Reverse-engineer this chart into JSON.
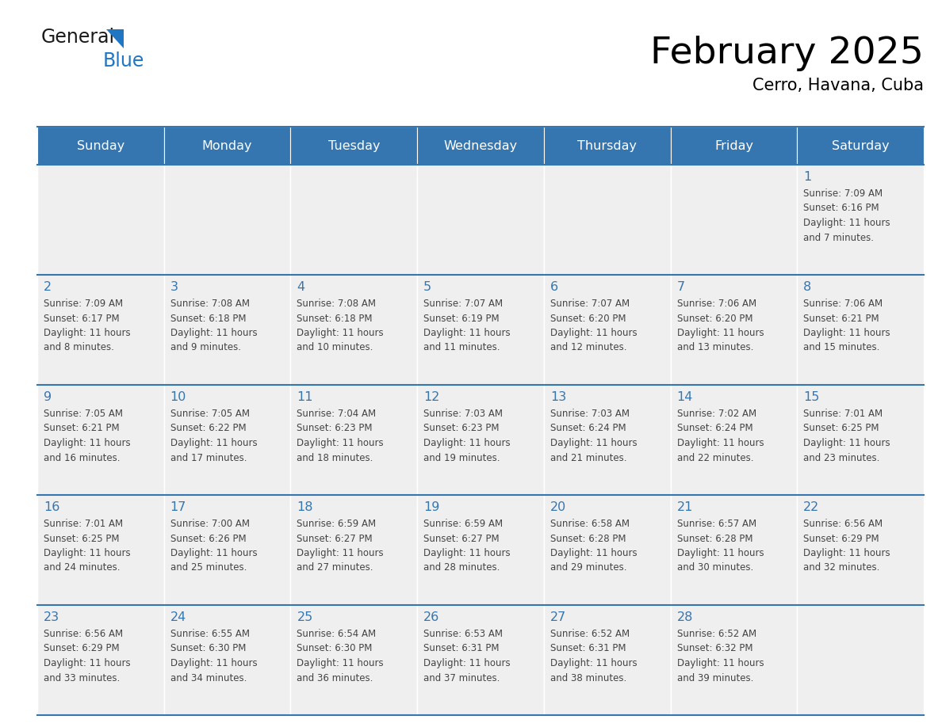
{
  "title": "February 2025",
  "subtitle": "Cerro, Havana, Cuba",
  "header_color": "#3676B0",
  "header_text_color": "#FFFFFF",
  "cell_bg_color": "#EFEFEF",
  "text_color": "#444444",
  "day_number_color": "#3676B0",
  "border_color": "#3676B0",
  "days_of_week": [
    "Sunday",
    "Monday",
    "Tuesday",
    "Wednesday",
    "Thursday",
    "Friday",
    "Saturday"
  ],
  "weeks": [
    [
      {
        "day": 0,
        "info": ""
      },
      {
        "day": 0,
        "info": ""
      },
      {
        "day": 0,
        "info": ""
      },
      {
        "day": 0,
        "info": ""
      },
      {
        "day": 0,
        "info": ""
      },
      {
        "day": 0,
        "info": ""
      },
      {
        "day": 1,
        "info": "Sunrise: 7:09 AM\nSunset: 6:16 PM\nDaylight: 11 hours\nand 7 minutes."
      }
    ],
    [
      {
        "day": 2,
        "info": "Sunrise: 7:09 AM\nSunset: 6:17 PM\nDaylight: 11 hours\nand 8 minutes."
      },
      {
        "day": 3,
        "info": "Sunrise: 7:08 AM\nSunset: 6:18 PM\nDaylight: 11 hours\nand 9 minutes."
      },
      {
        "day": 4,
        "info": "Sunrise: 7:08 AM\nSunset: 6:18 PM\nDaylight: 11 hours\nand 10 minutes."
      },
      {
        "day": 5,
        "info": "Sunrise: 7:07 AM\nSunset: 6:19 PM\nDaylight: 11 hours\nand 11 minutes."
      },
      {
        "day": 6,
        "info": "Sunrise: 7:07 AM\nSunset: 6:20 PM\nDaylight: 11 hours\nand 12 minutes."
      },
      {
        "day": 7,
        "info": "Sunrise: 7:06 AM\nSunset: 6:20 PM\nDaylight: 11 hours\nand 13 minutes."
      },
      {
        "day": 8,
        "info": "Sunrise: 7:06 AM\nSunset: 6:21 PM\nDaylight: 11 hours\nand 15 minutes."
      }
    ],
    [
      {
        "day": 9,
        "info": "Sunrise: 7:05 AM\nSunset: 6:21 PM\nDaylight: 11 hours\nand 16 minutes."
      },
      {
        "day": 10,
        "info": "Sunrise: 7:05 AM\nSunset: 6:22 PM\nDaylight: 11 hours\nand 17 minutes."
      },
      {
        "day": 11,
        "info": "Sunrise: 7:04 AM\nSunset: 6:23 PM\nDaylight: 11 hours\nand 18 minutes."
      },
      {
        "day": 12,
        "info": "Sunrise: 7:03 AM\nSunset: 6:23 PM\nDaylight: 11 hours\nand 19 minutes."
      },
      {
        "day": 13,
        "info": "Sunrise: 7:03 AM\nSunset: 6:24 PM\nDaylight: 11 hours\nand 21 minutes."
      },
      {
        "day": 14,
        "info": "Sunrise: 7:02 AM\nSunset: 6:24 PM\nDaylight: 11 hours\nand 22 minutes."
      },
      {
        "day": 15,
        "info": "Sunrise: 7:01 AM\nSunset: 6:25 PM\nDaylight: 11 hours\nand 23 minutes."
      }
    ],
    [
      {
        "day": 16,
        "info": "Sunrise: 7:01 AM\nSunset: 6:25 PM\nDaylight: 11 hours\nand 24 minutes."
      },
      {
        "day": 17,
        "info": "Sunrise: 7:00 AM\nSunset: 6:26 PM\nDaylight: 11 hours\nand 25 minutes."
      },
      {
        "day": 18,
        "info": "Sunrise: 6:59 AM\nSunset: 6:27 PM\nDaylight: 11 hours\nand 27 minutes."
      },
      {
        "day": 19,
        "info": "Sunrise: 6:59 AM\nSunset: 6:27 PM\nDaylight: 11 hours\nand 28 minutes."
      },
      {
        "day": 20,
        "info": "Sunrise: 6:58 AM\nSunset: 6:28 PM\nDaylight: 11 hours\nand 29 minutes."
      },
      {
        "day": 21,
        "info": "Sunrise: 6:57 AM\nSunset: 6:28 PM\nDaylight: 11 hours\nand 30 minutes."
      },
      {
        "day": 22,
        "info": "Sunrise: 6:56 AM\nSunset: 6:29 PM\nDaylight: 11 hours\nand 32 minutes."
      }
    ],
    [
      {
        "day": 23,
        "info": "Sunrise: 6:56 AM\nSunset: 6:29 PM\nDaylight: 11 hours\nand 33 minutes."
      },
      {
        "day": 24,
        "info": "Sunrise: 6:55 AM\nSunset: 6:30 PM\nDaylight: 11 hours\nand 34 minutes."
      },
      {
        "day": 25,
        "info": "Sunrise: 6:54 AM\nSunset: 6:30 PM\nDaylight: 11 hours\nand 36 minutes."
      },
      {
        "day": 26,
        "info": "Sunrise: 6:53 AM\nSunset: 6:31 PM\nDaylight: 11 hours\nand 37 minutes."
      },
      {
        "day": 27,
        "info": "Sunrise: 6:52 AM\nSunset: 6:31 PM\nDaylight: 11 hours\nand 38 minutes."
      },
      {
        "day": 28,
        "info": "Sunrise: 6:52 AM\nSunset: 6:32 PM\nDaylight: 11 hours\nand 39 minutes."
      },
      {
        "day": 0,
        "info": ""
      }
    ]
  ],
  "logo_general_color": "#1a1a1a",
  "logo_blue_color": "#2176C4",
  "logo_triangle_color": "#2176C4",
  "n_weeks": 5,
  "n_cols": 7
}
